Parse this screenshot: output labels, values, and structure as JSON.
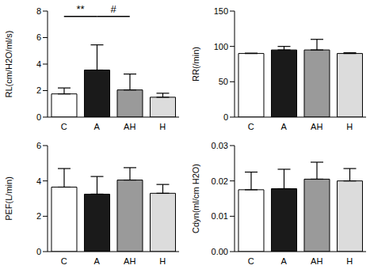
{
  "chart_data": [
    {
      "type": "bar",
      "ylabel": "RL(cm/H2O/ml/s)",
      "categories": [
        "C",
        "A",
        "AH",
        "H"
      ],
      "values": [
        1.75,
        3.55,
        2.05,
        1.5
      ],
      "errors": [
        0.45,
        1.9,
        1.2,
        0.3
      ],
      "colors": [
        "#ffffff",
        "#1a1a1a",
        "#9a9a9a",
        "#dcdcdc"
      ],
      "ylim": [
        0,
        8
      ],
      "yticks": [
        0,
        2,
        4,
        6,
        8
      ],
      "grid": false,
      "annotations": [
        {
          "text": "**",
          "from": "C",
          "to": "A"
        },
        {
          "text": "#",
          "from": "A",
          "to": "AH"
        }
      ]
    },
    {
      "type": "bar",
      "ylabel": "RR(/min)",
      "categories": [
        "C",
        "A",
        "AH",
        "H"
      ],
      "values": [
        90,
        95,
        95,
        90
      ],
      "errors": [
        0.5,
        5,
        15,
        1
      ],
      "colors": [
        "#ffffff",
        "#1a1a1a",
        "#9a9a9a",
        "#dcdcdc"
      ],
      "ylim": [
        0,
        150
      ],
      "yticks": [
        0,
        50,
        100,
        150
      ],
      "grid": false
    },
    {
      "type": "bar",
      "ylabel": "PEF(L/min)",
      "categories": [
        "C",
        "A",
        "AH",
        "H"
      ],
      "values": [
        3.65,
        3.25,
        4.05,
        3.3
      ],
      "errors": [
        1.05,
        1.0,
        0.7,
        0.5
      ],
      "colors": [
        "#ffffff",
        "#1a1a1a",
        "#9a9a9a",
        "#dcdcdc"
      ],
      "ylim": [
        0,
        6
      ],
      "yticks": [
        0,
        2,
        4,
        6
      ],
      "grid": false
    },
    {
      "type": "bar",
      "ylabel": "Cdyn(ml/cm H2O)",
      "categories": [
        "C",
        "A",
        "AH",
        "H"
      ],
      "values": [
        0.0175,
        0.0178,
        0.0205,
        0.02
      ],
      "errors": [
        0.005,
        0.0055,
        0.0048,
        0.0035
      ],
      "colors": [
        "#ffffff",
        "#1a1a1a",
        "#9a9a9a",
        "#dcdcdc"
      ],
      "ylim": [
        0,
        0.03
      ],
      "yticks": [
        {
          "value": 0,
          "label": "0.00"
        },
        {
          "value": 0.01,
          "label": "0.01"
        },
        {
          "value": 0.02,
          "label": "0.02"
        },
        {
          "value": 0.03,
          "label": "0.03"
        }
      ],
      "grid": false
    }
  ]
}
